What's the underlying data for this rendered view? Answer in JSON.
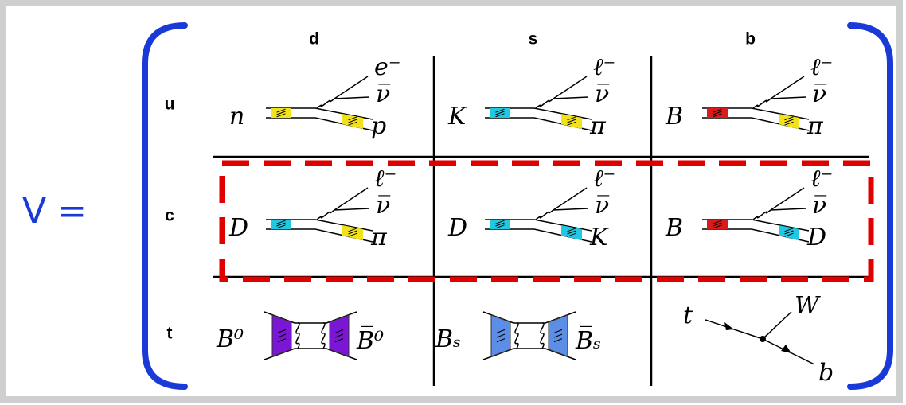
{
  "lhs": "V =",
  "columns": [
    "d",
    "s",
    "b"
  ],
  "rows": [
    {
      "label": "u",
      "cells": [
        {
          "initial": "n",
          "products": [
            "e⁻",
            "ν̅",
            "p"
          ]
        },
        {
          "initial": "K",
          "products": [
            "ℓ⁻",
            "ν̅",
            "π"
          ]
        },
        {
          "initial": "B",
          "products": [
            "ℓ⁻",
            "ν̅",
            "π"
          ]
        }
      ]
    },
    {
      "label": "c",
      "cells": [
        {
          "initial": "D",
          "products": [
            "ℓ⁻",
            "ν̅",
            "π"
          ]
        },
        {
          "initial": "D",
          "products": [
            "ℓ⁻",
            "ν̅",
            "K"
          ]
        },
        {
          "initial": "B",
          "products": [
            "ℓ⁻",
            "ν̅",
            "D"
          ]
        }
      ]
    },
    {
      "label": "t",
      "cells": [
        {
          "left": "B⁰",
          "right": "B̅⁰"
        },
        {
          "left": "Bₛ",
          "right": "B̅ₛ"
        },
        {
          "initial": "t",
          "products": [
            "W",
            "b"
          ]
        }
      ]
    }
  ]
}
